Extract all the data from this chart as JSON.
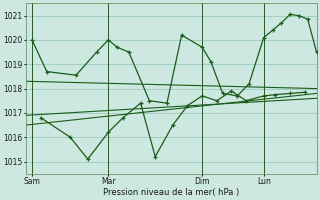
{
  "xlabel": "Pression niveau de la mer( hPa )",
  "bg_color": "#cce8e0",
  "grid_color": "#99ccbb",
  "line_color": "#1a5c1a",
  "vline_color": "#2a5a2a",
  "ylim": [
    1014.5,
    1021.5
  ],
  "yticks": [
    1015,
    1016,
    1017,
    1018,
    1019,
    1020,
    1021
  ],
  "xtick_labels": [
    "Sam",
    "Mar",
    "Dim",
    "Lun"
  ],
  "xtick_positions": [
    0,
    26,
    58,
    79
  ],
  "vline_positions": [
    0,
    26,
    58,
    79
  ],
  "xlim": [
    -2,
    97
  ],
  "series1_x": [
    0,
    5,
    15,
    22,
    26,
    29,
    33,
    40,
    46,
    51,
    58,
    61,
    65,
    70,
    74,
    79,
    82,
    85,
    88,
    91,
    94,
    97
  ],
  "series1_y": [
    1020.0,
    1018.7,
    1018.55,
    1019.5,
    1020.0,
    1019.7,
    1019.5,
    1017.5,
    1017.4,
    1020.2,
    1019.7,
    1019.1,
    1017.8,
    1017.7,
    1018.2,
    1020.1,
    1020.4,
    1020.7,
    1021.05,
    1021.0,
    1020.85,
    1019.5
  ],
  "series2_x": [
    3,
    13,
    19,
    26,
    31,
    37,
    42,
    48,
    53,
    58,
    63,
    68,
    73,
    79,
    83,
    88,
    93
  ],
  "series2_y": [
    1016.8,
    1016.0,
    1015.1,
    1016.2,
    1016.8,
    1017.4,
    1015.2,
    1016.5,
    1017.3,
    1017.7,
    1017.5,
    1017.9,
    1017.5,
    1017.7,
    1017.75,
    1017.8,
    1017.85
  ],
  "trend1_x": [
    -2,
    97
  ],
  "trend1_y": [
    1018.3,
    1018.0
  ],
  "trend2_x": [
    -2,
    97
  ],
  "trend2_y": [
    1016.5,
    1017.8
  ],
  "trend3_x": [
    -2,
    97
  ],
  "trend3_y": [
    1016.9,
    1017.6
  ]
}
